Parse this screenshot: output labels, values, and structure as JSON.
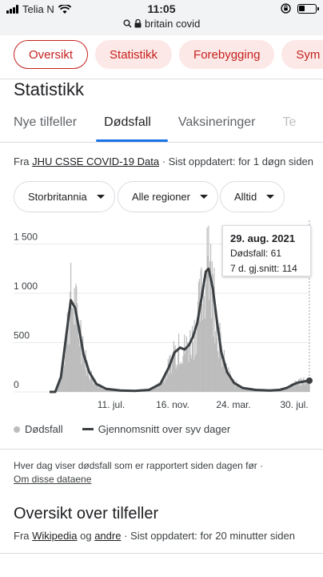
{
  "status_bar": {
    "carrier": "Telia N",
    "time": "11:05"
  },
  "browser": {
    "url_text": "britain covid"
  },
  "chips": [
    {
      "label": "Oversikt",
      "active": true
    },
    {
      "label": "Statistikk",
      "active": false
    },
    {
      "label": "Forebygging",
      "active": false
    },
    {
      "label": "Sym",
      "active": false
    }
  ],
  "section_title": "Statistikk",
  "tabs": [
    {
      "label": "Nye tilfeller"
    },
    {
      "label": "Dødsfall"
    },
    {
      "label": "Vaksineringer"
    },
    {
      "label": "Te"
    }
  ],
  "source": {
    "prefix": "Fra",
    "link": "JHU CSSE COVID-19 Data",
    "updated": "· Sist oppdatert: for 1 døgn siden"
  },
  "filters": {
    "region": "Storbritannia",
    "subregion": "Alle regioner",
    "period": "Alltid"
  },
  "tooltip": {
    "date": "29. aug. 2021",
    "deaths_label": "Dødsfall: 61",
    "avg_label": "7 d. gj.snitt: 114"
  },
  "legend": {
    "deaths": "Dødsfall",
    "average": "Gjennomsnitt over syv dager"
  },
  "note": {
    "text": "Hver dag viser dødsfall som er rapportert siden dagen før  ·",
    "link": "Om disse dataene"
  },
  "overview": {
    "title": "Oversikt over tilfeller",
    "prefix": "Fra",
    "link1": "Wikipedia",
    "and": "og",
    "link2": "andre",
    "updated": "· Sist oppdatert: for 20 minutter siden"
  },
  "colors": {
    "accent": "#1a73e8",
    "chip_text": "#c5221f",
    "chip_bg": "#fce8e6",
    "bars": "#bdbdbd",
    "line": "#3c4043"
  },
  "chart_data": {
    "type": "bar",
    "y_ticks": [
      "0",
      "500",
      "1 000",
      "1 500"
    ],
    "x_ticks": [
      "11. jul.",
      "16. nov.",
      "24. mar.",
      "30. jul."
    ],
    "ylim": [
      0,
      1700
    ],
    "series": [
      {
        "name": "Gjennomsnitt over syv dager",
        "type": "line",
        "points": [
          [
            0,
            0
          ],
          [
            4,
            0
          ],
          [
            8,
            150
          ],
          [
            12,
            600
          ],
          [
            15,
            930
          ],
          [
            18,
            850
          ],
          [
            21,
            620
          ],
          [
            24,
            380
          ],
          [
            28,
            200
          ],
          [
            33,
            80
          ],
          [
            40,
            30
          ],
          [
            50,
            15
          ],
          [
            60,
            10
          ],
          [
            70,
            20
          ],
          [
            78,
            80
          ],
          [
            84,
            250
          ],
          [
            88,
            400
          ],
          [
            92,
            450
          ],
          [
            95,
            430
          ],
          [
            98,
            470
          ],
          [
            101,
            560
          ],
          [
            104,
            700
          ],
          [
            107,
            950
          ],
          [
            110,
            1220
          ],
          [
            112,
            1250
          ],
          [
            115,
            1050
          ],
          [
            118,
            700
          ],
          [
            121,
            400
          ],
          [
            125,
            200
          ],
          [
            130,
            90
          ],
          [
            136,
            40
          ],
          [
            145,
            20
          ],
          [
            155,
            15
          ],
          [
            162,
            20
          ],
          [
            167,
            40
          ],
          [
            171,
            70
          ],
          [
            175,
            95
          ],
          [
            179,
            105
          ],
          [
            183,
            114
          ]
        ]
      },
      {
        "name": "Dødsfall",
        "type": "bar",
        "note": "daily deaths"
      }
    ],
    "tooltip_point": {
      "date": "29. aug. 2021",
      "deaths": 61,
      "avg7": 114
    }
  }
}
